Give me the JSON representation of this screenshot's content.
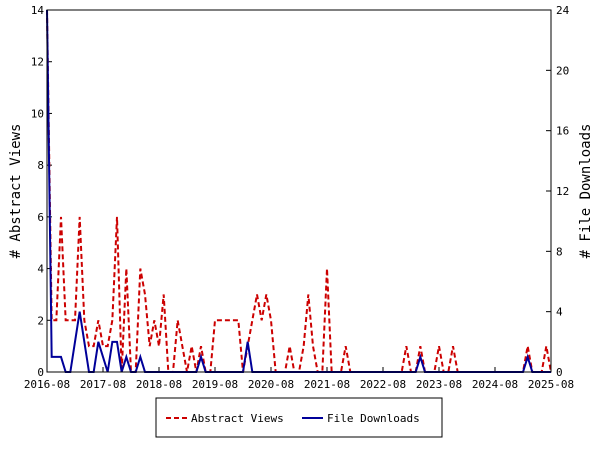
{
  "chart_data": {
    "type": "line",
    "title": "",
    "xlabel": "",
    "ylabel_left": "# Abstract Views",
    "ylabel_right": "# File Downloads",
    "x_ticks": [
      "2016-08",
      "2017-08",
      "2018-08",
      "2019-08",
      "2020-08",
      "2021-08",
      "2022-08",
      "2023-08",
      "2024-08",
      "2025-08"
    ],
    "y_left_ticks": [
      0,
      2,
      4,
      6,
      8,
      10,
      12,
      14
    ],
    "y_right_ticks": [
      0,
      4,
      8,
      12,
      16,
      20,
      24
    ],
    "y_left_range": [
      0,
      14
    ],
    "y_right_range": [
      0,
      24
    ],
    "x_range": [
      "2016-08",
      "2025-08"
    ],
    "legend_position": "bottom",
    "series": [
      {
        "name": "Abstract Views",
        "axis": "left",
        "color": "#cc0000",
        "style": "dashed",
        "points": [
          [
            "2016-08",
            14
          ],
          [
            "2016-09",
            2
          ],
          [
            "2016-10",
            2
          ],
          [
            "2016-11",
            6
          ],
          [
            "2016-12",
            2
          ],
          [
            "2017-01",
            2
          ],
          [
            "2017-02",
            2
          ],
          [
            "2017-03",
            6
          ],
          [
            "2017-04",
            2
          ],
          [
            "2017-05",
            1
          ],
          [
            "2017-06",
            1
          ],
          [
            "2017-07",
            2
          ],
          [
            "2017-08",
            1
          ],
          [
            "2017-09",
            1
          ],
          [
            "2017-10",
            2
          ],
          [
            "2017-11",
            6
          ],
          [
            "2017-12",
            0
          ],
          [
            "2018-01",
            4
          ],
          [
            "2018-02",
            0
          ],
          [
            "2018-03",
            0
          ],
          [
            "2018-04",
            4
          ],
          [
            "2018-05",
            3
          ],
          [
            "2018-06",
            1
          ],
          [
            "2018-07",
            2
          ],
          [
            "2018-08",
            1
          ],
          [
            "2018-09",
            3
          ],
          [
            "2018-10",
            0
          ],
          [
            "2018-11",
            0
          ],
          [
            "2018-12",
            2
          ],
          [
            "2019-01",
            1
          ],
          [
            "2019-02",
            0
          ],
          [
            "2019-03",
            1
          ],
          [
            "2019-04",
            0
          ],
          [
            "2019-05",
            1
          ],
          [
            "2019-06",
            0
          ],
          [
            "2019-07",
            0
          ],
          [
            "2019-08",
            2
          ],
          [
            "2019-09",
            2
          ],
          [
            "2019-10",
            2
          ],
          [
            "2019-11",
            2
          ],
          [
            "2019-12",
            2
          ],
          [
            "2020-01",
            2
          ],
          [
            "2020-02",
            0
          ],
          [
            "2020-03",
            1
          ],
          [
            "2020-04",
            2
          ],
          [
            "2020-05",
            3
          ],
          [
            "2020-06",
            2
          ],
          [
            "2020-07",
            3
          ],
          [
            "2020-08",
            2
          ],
          [
            "2020-09",
            0
          ],
          [
            "2020-10",
            0
          ],
          [
            "2020-11",
            0
          ],
          [
            "2020-12",
            1
          ],
          [
            "2021-01",
            0
          ],
          [
            "2021-02",
            0
          ],
          [
            "2021-03",
            1
          ],
          [
            "2021-04",
            3
          ],
          [
            "2021-05",
            1
          ],
          [
            "2021-06",
            0
          ],
          [
            "2021-07",
            0
          ],
          [
            "2021-08",
            4
          ],
          [
            "2021-09",
            0
          ],
          [
            "2021-10",
            0
          ],
          [
            "2021-11",
            0
          ],
          [
            "2021-12",
            1
          ],
          [
            "2022-01",
            0
          ],
          [
            "2022-02",
            0
          ],
          [
            "2022-03",
            0
          ],
          [
            "2022-04",
            0
          ],
          [
            "2022-05",
            0
          ],
          [
            "2022-06",
            0
          ],
          [
            "2022-07",
            0
          ],
          [
            "2022-08",
            0
          ],
          [
            "2022-09",
            0
          ],
          [
            "2022-10",
            0
          ],
          [
            "2022-11",
            0
          ],
          [
            "2022-12",
            0
          ],
          [
            "2023-01",
            1
          ],
          [
            "2023-02",
            0
          ],
          [
            "2023-03",
            0
          ],
          [
            "2023-04",
            1
          ],
          [
            "2023-05",
            0
          ],
          [
            "2023-06",
            0
          ],
          [
            "2023-07",
            0
          ],
          [
            "2023-08",
            1
          ],
          [
            "2023-09",
            0
          ],
          [
            "2023-10",
            0
          ],
          [
            "2023-11",
            1
          ],
          [
            "2023-12",
            0
          ],
          [
            "2024-01",
            0
          ],
          [
            "2024-02",
            0
          ],
          [
            "2024-03",
            0
          ],
          [
            "2024-04",
            0
          ],
          [
            "2024-05",
            0
          ],
          [
            "2024-06",
            0
          ],
          [
            "2024-07",
            0
          ],
          [
            "2024-08",
            0
          ],
          [
            "2024-09",
            0
          ],
          [
            "2024-10",
            0
          ],
          [
            "2024-11",
            0
          ],
          [
            "2024-12",
            0
          ],
          [
            "2025-01",
            0
          ],
          [
            "2025-02",
            0
          ],
          [
            "2025-03",
            1
          ],
          [
            "2025-04",
            0
          ],
          [
            "2025-05",
            0
          ],
          [
            "2025-06",
            0
          ],
          [
            "2025-07",
            1
          ],
          [
            "2025-08",
            0
          ]
        ]
      },
      {
        "name": "File Downloads",
        "axis": "right",
        "color": "#000099",
        "style": "solid",
        "points": [
          [
            "2016-08",
            24
          ],
          [
            "2016-09",
            1
          ],
          [
            "2016-10",
            1
          ],
          [
            "2016-11",
            1
          ],
          [
            "2016-12",
            0
          ],
          [
            "2017-01",
            0
          ],
          [
            "2017-02",
            2
          ],
          [
            "2017-03",
            4
          ],
          [
            "2017-04",
            2
          ],
          [
            "2017-05",
            0
          ],
          [
            "2017-06",
            0
          ],
          [
            "2017-07",
            2
          ],
          [
            "2017-08",
            1
          ],
          [
            "2017-09",
            0
          ],
          [
            "2017-10",
            2
          ],
          [
            "2017-11",
            2
          ],
          [
            "2017-12",
            0
          ],
          [
            "2018-01",
            1
          ],
          [
            "2018-02",
            0
          ],
          [
            "2018-03",
            0
          ],
          [
            "2018-04",
            1
          ],
          [
            "2018-05",
            0
          ],
          [
            "2018-06",
            0
          ],
          [
            "2018-07",
            0
          ],
          [
            "2018-08",
            0
          ],
          [
            "2018-09",
            0
          ],
          [
            "2018-10",
            0
          ],
          [
            "2018-11",
            0
          ],
          [
            "2018-12",
            0
          ],
          [
            "2019-01",
            0
          ],
          [
            "2019-02",
            0
          ],
          [
            "2019-03",
            0
          ],
          [
            "2019-04",
            0
          ],
          [
            "2019-05",
            1
          ],
          [
            "2019-06",
            0
          ],
          [
            "2019-07",
            0
          ],
          [
            "2019-08",
            0
          ],
          [
            "2019-09",
            0
          ],
          [
            "2019-10",
            0
          ],
          [
            "2019-11",
            0
          ],
          [
            "2019-12",
            0
          ],
          [
            "2020-01",
            0
          ],
          [
            "2020-02",
            0
          ],
          [
            "2020-03",
            2
          ],
          [
            "2020-04",
            0
          ],
          [
            "2020-05",
            0
          ],
          [
            "2020-06",
            0
          ],
          [
            "2020-07",
            0
          ],
          [
            "2020-08",
            0
          ],
          [
            "2020-09",
            0
          ],
          [
            "2020-10",
            0
          ],
          [
            "2020-11",
            0
          ],
          [
            "2020-12",
            0
          ],
          [
            "2021-01",
            0
          ],
          [
            "2021-02",
            0
          ],
          [
            "2021-03",
            0
          ],
          [
            "2021-04",
            0
          ],
          [
            "2021-05",
            0
          ],
          [
            "2021-06",
            0
          ],
          [
            "2021-07",
            0
          ],
          [
            "2021-08",
            0
          ],
          [
            "2021-09",
            0
          ],
          [
            "2021-10",
            0
          ],
          [
            "2021-11",
            0
          ],
          [
            "2021-12",
            0
          ],
          [
            "2022-01",
            0
          ],
          [
            "2022-02",
            0
          ],
          [
            "2022-03",
            0
          ],
          [
            "2022-04",
            0
          ],
          [
            "2022-05",
            0
          ],
          [
            "2022-06",
            0
          ],
          [
            "2022-07",
            0
          ],
          [
            "2022-08",
            0
          ],
          [
            "2022-09",
            0
          ],
          [
            "2022-10",
            0
          ],
          [
            "2022-11",
            0
          ],
          [
            "2022-12",
            0
          ],
          [
            "2023-01",
            0
          ],
          [
            "2023-02",
            0
          ],
          [
            "2023-03",
            0
          ],
          [
            "2023-04",
            1
          ],
          [
            "2023-05",
            0
          ],
          [
            "2023-06",
            0
          ],
          [
            "2023-07",
            0
          ],
          [
            "2023-08",
            0
          ],
          [
            "2023-09",
            0
          ],
          [
            "2023-10",
            0
          ],
          [
            "2023-11",
            0
          ],
          [
            "2023-12",
            0
          ],
          [
            "2024-01",
            0
          ],
          [
            "2024-02",
            0
          ],
          [
            "2024-03",
            0
          ],
          [
            "2024-04",
            0
          ],
          [
            "2024-05",
            0
          ],
          [
            "2024-06",
            0
          ],
          [
            "2024-07",
            0
          ],
          [
            "2024-08",
            0
          ],
          [
            "2024-09",
            0
          ],
          [
            "2024-10",
            0
          ],
          [
            "2024-11",
            0
          ],
          [
            "2024-12",
            0
          ],
          [
            "2025-01",
            0
          ],
          [
            "2025-02",
            0
          ],
          [
            "2025-03",
            1
          ],
          [
            "2025-04",
            0
          ],
          [
            "2025-05",
            0
          ],
          [
            "2025-06",
            0
          ],
          [
            "2025-07",
            0
          ],
          [
            "2025-08",
            0
          ]
        ]
      }
    ]
  }
}
